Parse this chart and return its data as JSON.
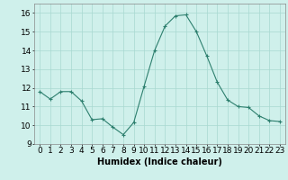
{
  "x": [
    0,
    1,
    2,
    3,
    4,
    5,
    6,
    7,
    8,
    9,
    10,
    11,
    12,
    13,
    14,
    15,
    16,
    17,
    18,
    19,
    20,
    21,
    22,
    23
  ],
  "y": [
    11.8,
    11.4,
    11.8,
    11.8,
    11.3,
    10.3,
    10.35,
    9.9,
    9.5,
    10.15,
    12.1,
    14.0,
    15.3,
    15.85,
    15.9,
    15.0,
    13.7,
    12.3,
    11.35,
    11.0,
    10.95,
    10.5,
    10.25,
    10.2
  ],
  "line_color": "#2d7f6e",
  "marker": "+",
  "marker_size": 3,
  "marker_linewidth": 0.8,
  "line_width": 0.8,
  "bg_color": "#cff0eb",
  "grid_color": "#a8d8d0",
  "xlabel": "Humidex (Indice chaleur)",
  "ylim": [
    9,
    16.5
  ],
  "xlim": [
    -0.5,
    23.5
  ],
  "yticks": [
    9,
    10,
    11,
    12,
    13,
    14,
    15,
    16
  ],
  "xticks": [
    0,
    1,
    2,
    3,
    4,
    5,
    6,
    7,
    8,
    9,
    10,
    11,
    12,
    13,
    14,
    15,
    16,
    17,
    18,
    19,
    20,
    21,
    22,
    23
  ],
  "xlabel_fontsize": 7,
  "tick_fontsize": 6.5
}
